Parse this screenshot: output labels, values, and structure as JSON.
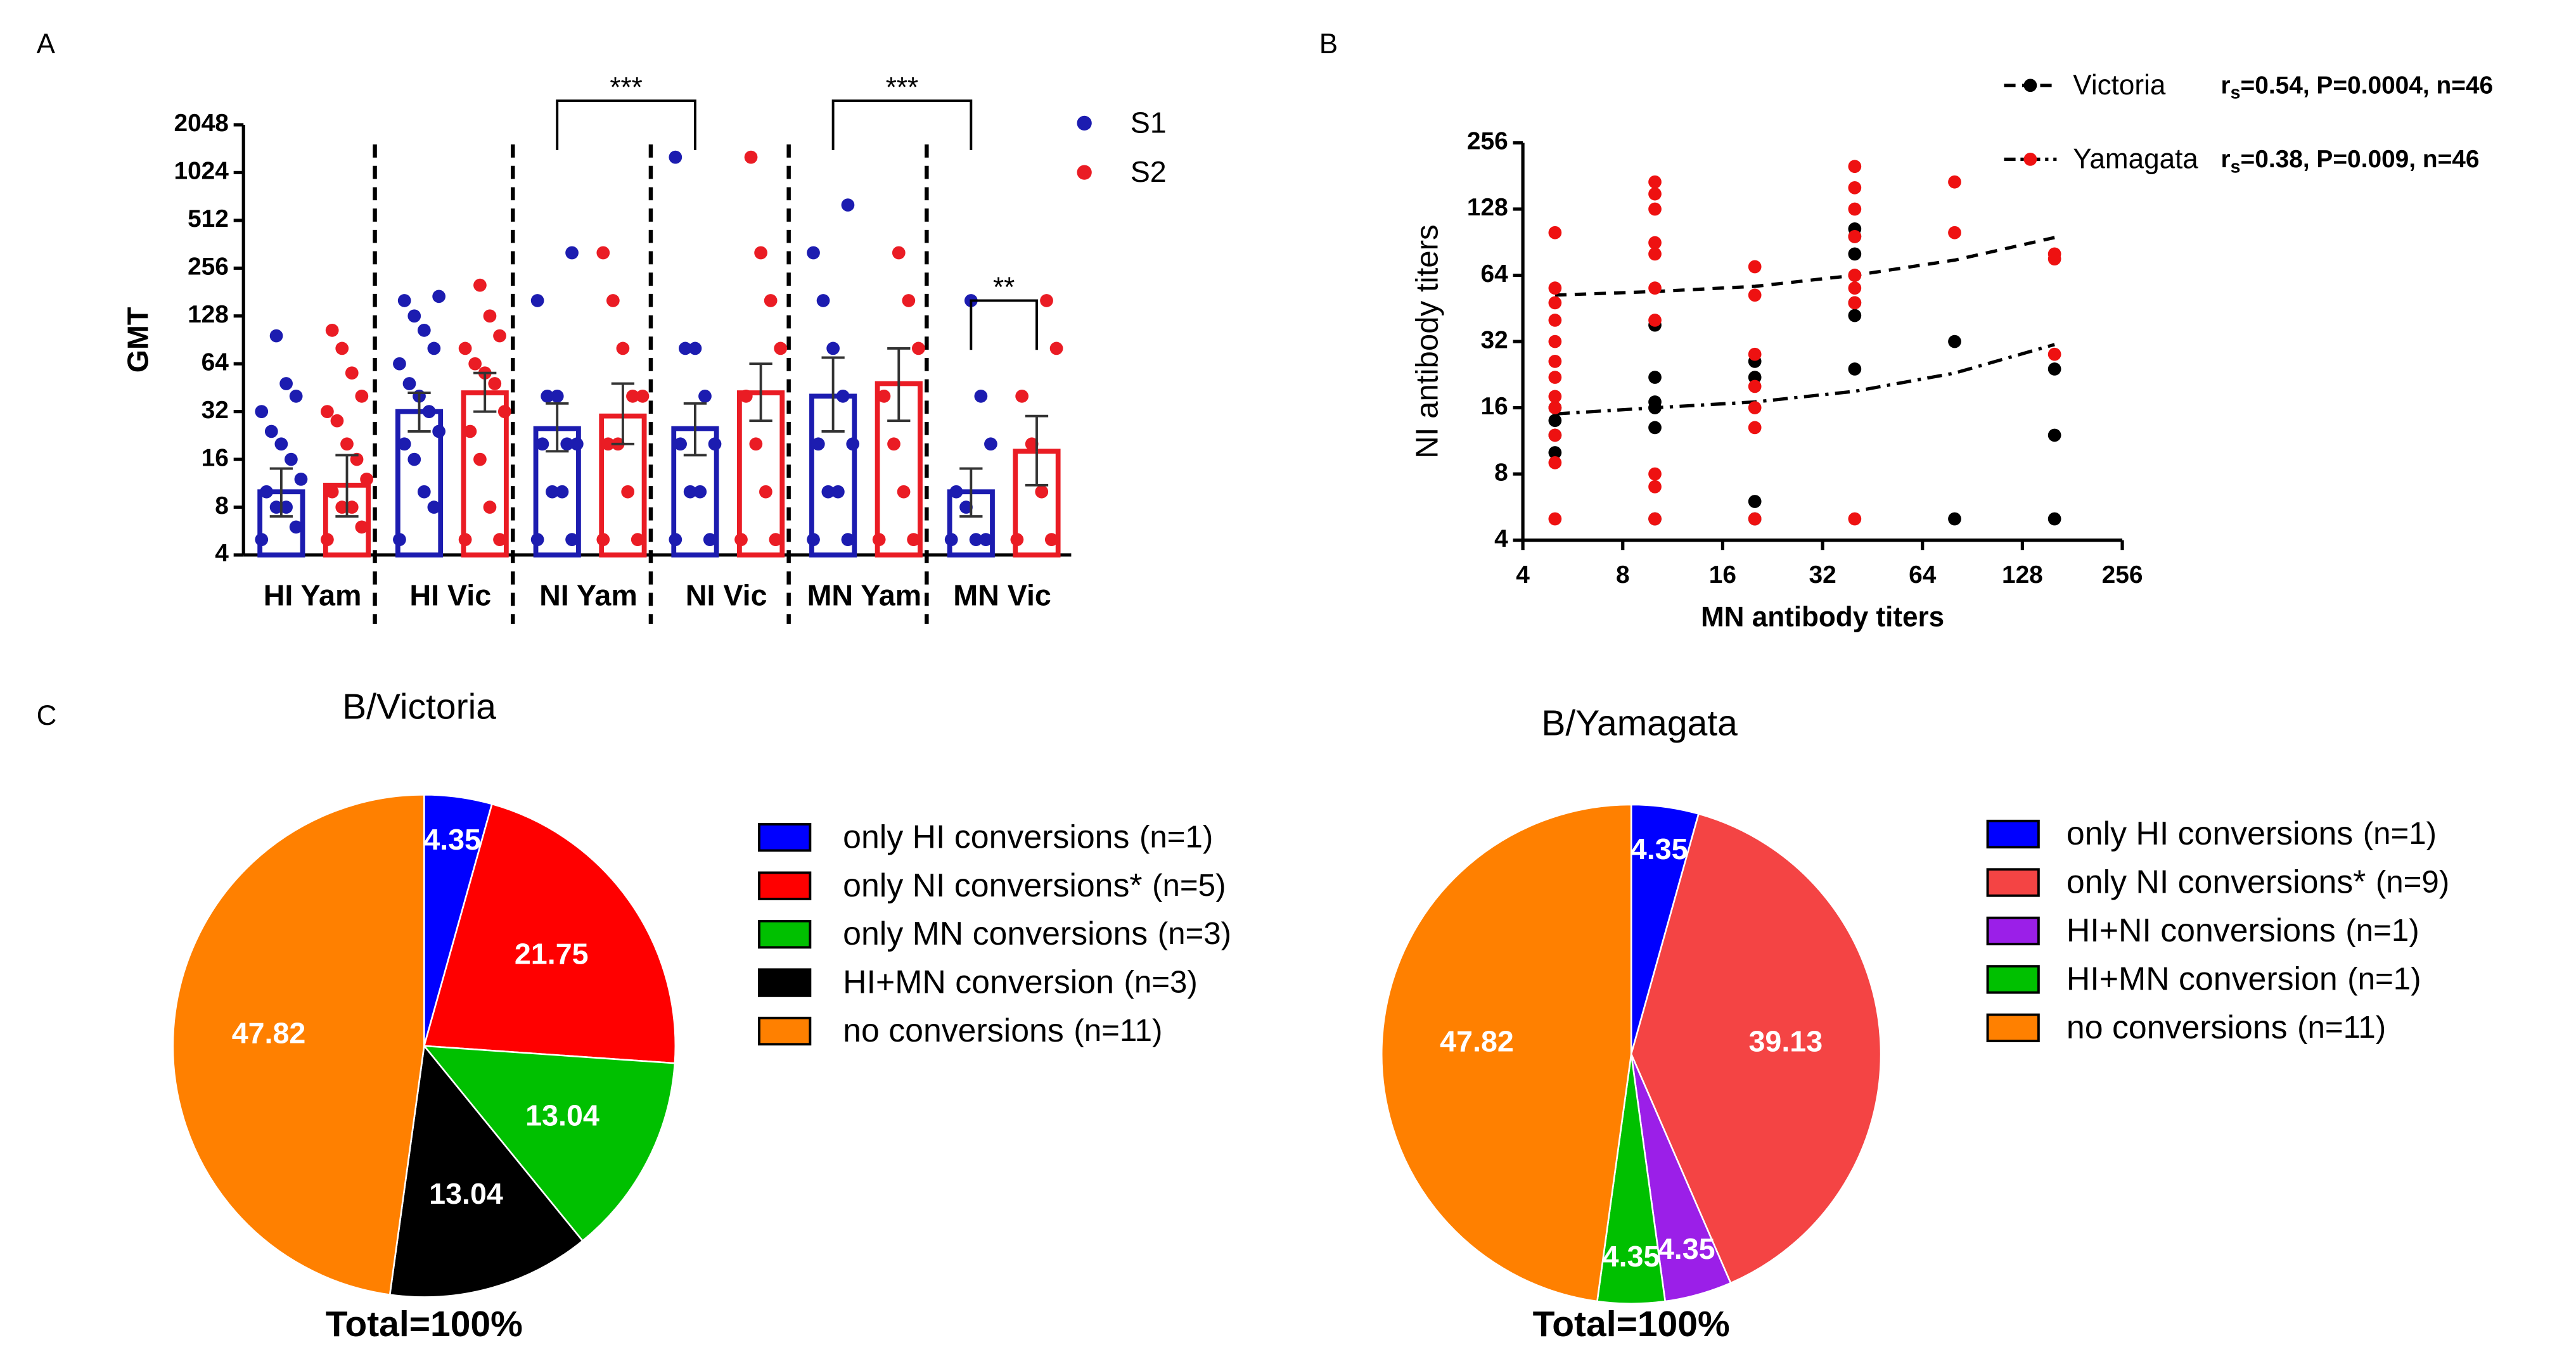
{
  "chart_data": [
    {
      "type": "bar",
      "panel_label": "A",
      "ylabel": "GMT",
      "log_scale": true,
      "categories": [
        "HI Yam",
        "HI Vic",
        "NI Yam",
        "NI Vic",
        "MN Yam",
        "MN Vic"
      ],
      "ylim": [
        4,
        2048
      ],
      "yticks": [
        4,
        8,
        16,
        32,
        64,
        128,
        256,
        512,
        1024,
        2048
      ],
      "series": [
        {
          "name": "S1",
          "color": "#1c1cb0",
          "values": [
            10,
            32,
            25,
            25,
            40,
            10
          ],
          "err_low": [
            7,
            24,
            18,
            17,
            24,
            7
          ],
          "err_high": [
            14,
            42,
            36,
            36,
            70,
            14
          ],
          "points": [
            [
              5,
              6,
              8,
              8,
              10,
              12,
              16,
              20,
              24,
              32,
              40,
              48,
              96
            ],
            [
              5,
              8,
              10,
              16,
              20,
              24,
              32,
              40,
              48,
              64,
              80,
              104,
              128,
              160,
              170
            ],
            [
              5,
              5,
              10,
              10,
              20,
              20,
              20,
              40,
              40,
              160,
              320
            ],
            [
              5,
              5,
              10,
              10,
              20,
              20,
              40,
              80,
              80,
              1280
            ],
            [
              5,
              5,
              10,
              10,
              20,
              20,
              40,
              80,
              160,
              320,
              640
            ],
            [
              5,
              5,
              5,
              8,
              10,
              20,
              40,
              160
            ]
          ]
        },
        {
          "name": "S2",
          "color": "#ea1c24",
          "values": [
            11,
            42,
            30,
            42,
            48,
            18
          ],
          "err_low": [
            7,
            32,
            20,
            28,
            28,
            11
          ],
          "err_high": [
            17,
            56,
            48,
            64,
            80,
            30
          ],
          "points": [
            [
              5,
              6,
              8,
              8,
              10,
              12,
              16,
              20,
              28,
              32,
              40,
              56,
              80,
              104
            ],
            [
              5,
              5,
              8,
              16,
              24,
              32,
              48,
              56,
              64,
              80,
              96,
              128,
              200
            ],
            [
              5,
              5,
              10,
              20,
              20,
              40,
              40,
              80,
              160,
              320
            ],
            [
              5,
              5,
              10,
              20,
              40,
              80,
              160,
              320,
              1280
            ],
            [
              5,
              5,
              10,
              20,
              40,
              80,
              160,
              320
            ],
            [
              5,
              5,
              10,
              20,
              40,
              80,
              160
            ]
          ]
        }
      ],
      "annotations": [
        {
          "text": "***",
          "from": [
            2,
            0
          ],
          "to": [
            3,
            0
          ],
          "y": 2900
        },
        {
          "text": "***",
          "from": [
            4,
            0
          ],
          "to": [
            5,
            0
          ],
          "y": 2900
        },
        {
          "text": "**",
          "from": [
            5,
            0
          ],
          "to": [
            5,
            1
          ],
          "y": 160
        }
      ]
    },
    {
      "type": "scatter",
      "panel_label": "B",
      "xlabel": "MN antibody titers",
      "ylabel": "NI antibody titers",
      "log_scale": true,
      "xlim": [
        4,
        256
      ],
      "ylim": [
        4,
        256
      ],
      "xticks": [
        4,
        8,
        16,
        32,
        64,
        128,
        256
      ],
      "yticks": [
        4,
        8,
        16,
        32,
        64,
        128,
        256
      ],
      "series": [
        {
          "name": "Victoria",
          "color": "#000000",
          "line": "dashed",
          "stats": {
            "symbol": "r",
            "subscript": "s",
            "text": "=0.54, P=0.0004, n=46"
          },
          "x": [
            5,
            5,
            5,
            5,
            10,
            10,
            10,
            10,
            10,
            10,
            20,
            20,
            20,
            20,
            40,
            40,
            40,
            40,
            40,
            40,
            40,
            80,
            80,
            160,
            160,
            160
          ],
          "y": [
            10,
            12,
            14,
            16,
            5,
            13,
            16,
            17,
            22,
            38,
            5,
            6,
            22,
            26,
            24,
            42,
            48,
            64,
            80,
            96,
            104,
            5,
            32,
            5,
            12,
            24
          ],
          "fit_x": [
            5,
            10,
            20,
            40,
            80,
            160
          ],
          "fit_y": [
            52,
            54,
            57,
            64,
            75,
            95
          ]
        },
        {
          "name": "Yamagata",
          "color": "#ee1111",
          "line": "dashdot",
          "stats": {
            "symbol": "r",
            "subscript": "s",
            "text": "=0.38, P=0.009, n=46"
          },
          "x": [
            5,
            5,
            5,
            5,
            5,
            5,
            5,
            5,
            5,
            5,
            5,
            5,
            10,
            10,
            10,
            10,
            10,
            10,
            10,
            10,
            10,
            10,
            20,
            20,
            20,
            20,
            20,
            20,
            20,
            40,
            40,
            40,
            40,
            40,
            40,
            40,
            40,
            80,
            80,
            160,
            160,
            160
          ],
          "y": [
            5,
            9,
            12,
            16,
            18,
            22,
            26,
            32,
            40,
            48,
            56,
            100,
            5,
            7,
            8,
            40,
            56,
            80,
            90,
            128,
            150,
            170,
            5,
            13,
            16,
            20,
            28,
            52,
            70,
            5,
            48,
            56,
            64,
            96,
            128,
            160,
            200,
            100,
            170,
            28,
            76,
            80
          ],
          "fit_x": [
            5,
            10,
            20,
            40,
            80,
            160
          ],
          "fit_y": [
            15,
            16,
            17,
            19,
            23,
            31
          ]
        }
      ]
    },
    {
      "type": "pie",
      "panel_label": "C",
      "title": "B/Victoria",
      "footer": "Total=100%",
      "categories": [
        "only HI conversions",
        "only NI conversions*",
        "only MN conversions",
        "HI+MN conversion",
        "no conversions"
      ],
      "counts": [
        "(n=1)",
        "(n=5)",
        "(n=3)",
        "(n=3)",
        "(n=11)"
      ],
      "values": [
        4.35,
        21.75,
        13.04,
        13.04,
        47.82
      ],
      "colors": [
        "#0000ff",
        "#ff0000",
        "#00c000",
        "#000000",
        "#ff8000"
      ]
    },
    {
      "type": "pie",
      "title": "B/Yamagata",
      "footer": "Total=100%",
      "categories": [
        "only HI conversions",
        "only NI conversions*",
        "HI+NI conversions",
        "HI+MN conversion",
        "no conversions"
      ],
      "counts": [
        "(n=1)",
        "(n=9)",
        "(n=1)",
        "(n=1)",
        "(n=11)"
      ],
      "values": [
        4.35,
        39.13,
        4.35,
        4.35,
        47.82
      ],
      "colors": [
        "#0000ff",
        "#f44444",
        "#9b1fe8",
        "#00c000",
        "#ff8000"
      ]
    }
  ]
}
